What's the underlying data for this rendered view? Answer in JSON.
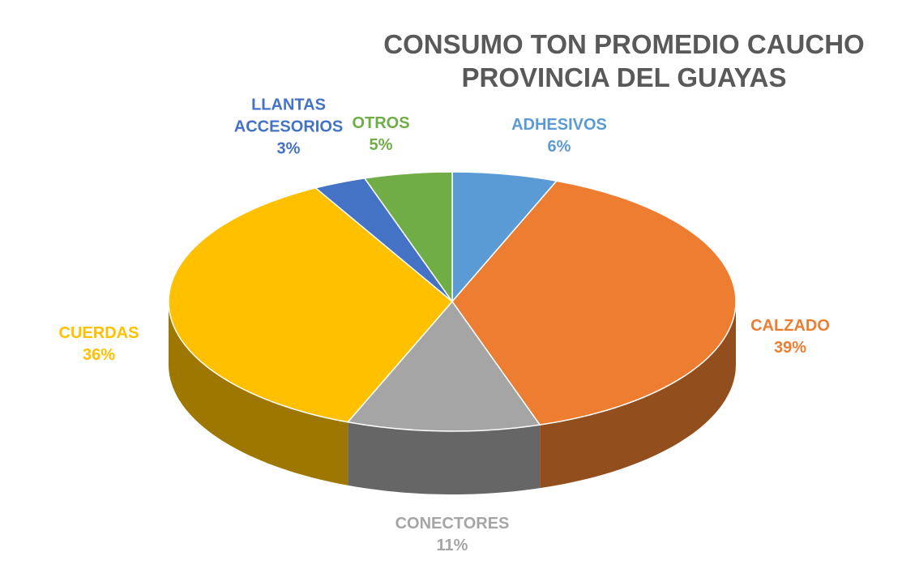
{
  "chart_data": {
    "type": "pie",
    "title": "CONSUMO TON PROMEDIO CAUCHO PROVINCIA DEL GUAYAS",
    "categories": [
      "ADHESIVOS",
      "CALZADO",
      "CONECTORES",
      "CUERDAS",
      "LLANTAS ACCESORIOS",
      "OTROS"
    ],
    "values": [
      6,
      39,
      11,
      36,
      3,
      5
    ],
    "value_labels": [
      "6%",
      "39%",
      "11%",
      "36%",
      "3%",
      "5%"
    ],
    "colors": [
      "#5b9bd5",
      "#ed7d31",
      "#a5a5a5",
      "#ffc000",
      "#4472c4",
      "#70ad47"
    ]
  }
}
